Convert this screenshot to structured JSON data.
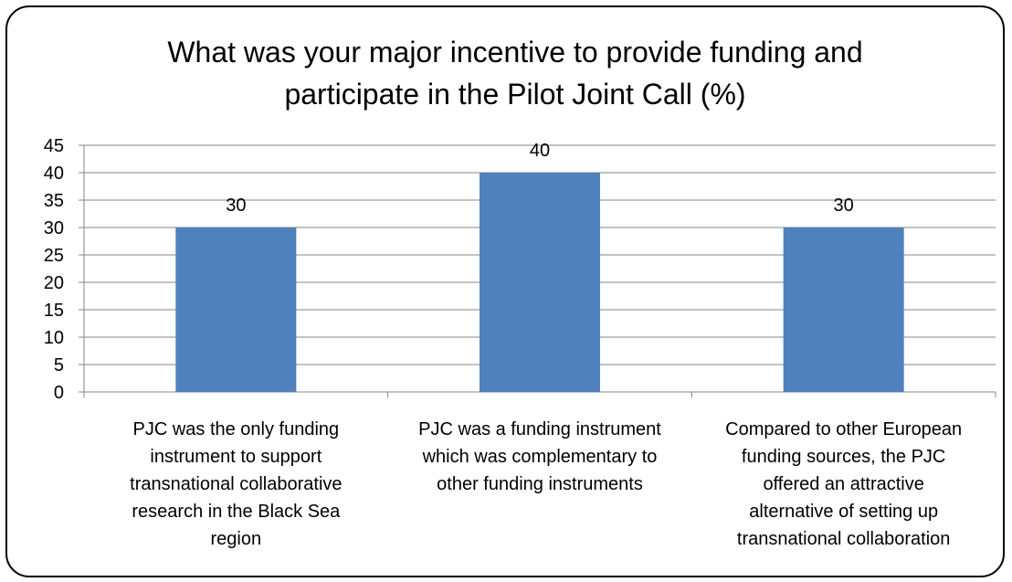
{
  "chart_data": {
    "type": "bar",
    "title_lines": [
      "What was your major incentive to provide funding and",
      "participate in the Pilot Joint Call (%)"
    ],
    "categories": [
      [
        "PJC was the only funding",
        "instrument to support",
        "transnational collaborative",
        "research in the Black Sea",
        "region"
      ],
      [
        "PJC was a funding instrument",
        "which was complementary to",
        "other funding instruments"
      ],
      [
        "Compared to other European",
        "funding sources, the PJC",
        "offered an attractive",
        "alternative of setting up",
        "transnational collaboration"
      ]
    ],
    "values": [
      30,
      40,
      30
    ],
    "data_labels": [
      "30",
      "40",
      "30"
    ],
    "ylim": [
      0,
      45
    ],
    "yticks": [
      "0",
      "5",
      "10",
      "15",
      "20",
      "25",
      "30",
      "35",
      "40",
      "45"
    ],
    "ytick_values": [
      0,
      5,
      10,
      15,
      20,
      25,
      30,
      35,
      40,
      45
    ],
    "grid": true,
    "legend": "none",
    "bar_color": "#4F81BD",
    "grid_color": "#868686"
  }
}
